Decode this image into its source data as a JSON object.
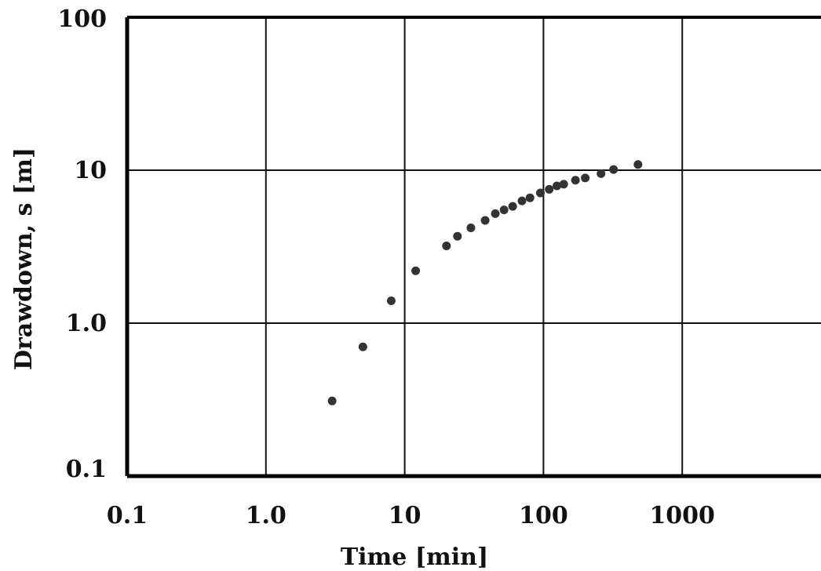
{
  "chart_data": {
    "type": "scatter",
    "title": "",
    "xlabel": "Time [min]",
    "ylabel": "Drawdown, s [m]",
    "x_scale": "log",
    "y_scale": "log",
    "xlim": [
      0.1,
      10000
    ],
    "ylim": [
      0.1,
      100
    ],
    "x_ticks": [
      {
        "value": 0.1,
        "label": "0.1"
      },
      {
        "value": 1,
        "label": "1.0"
      },
      {
        "value": 10,
        "label": "10"
      },
      {
        "value": 100,
        "label": "100"
      },
      {
        "value": 1000,
        "label": "1000"
      }
    ],
    "y_ticks": [
      {
        "value": 0.1,
        "label": "0.1"
      },
      {
        "value": 1,
        "label": "1.0"
      },
      {
        "value": 10,
        "label": "10"
      },
      {
        "value": 100,
        "label": "100"
      }
    ],
    "grid": true,
    "marker_color": "#333333",
    "series": [
      {
        "points": [
          {
            "x": 3,
            "y": 0.31
          },
          {
            "x": 5,
            "y": 0.7
          },
          {
            "x": 8,
            "y": 1.4
          },
          {
            "x": 12,
            "y": 2.2
          },
          {
            "x": 20,
            "y": 3.2
          },
          {
            "x": 24,
            "y": 3.7
          },
          {
            "x": 30,
            "y": 4.2
          },
          {
            "x": 38,
            "y": 4.7
          },
          {
            "x": 45,
            "y": 5.2
          },
          {
            "x": 52,
            "y": 5.5
          },
          {
            "x": 60,
            "y": 5.8
          },
          {
            "x": 70,
            "y": 6.3
          },
          {
            "x": 80,
            "y": 6.6
          },
          {
            "x": 95,
            "y": 7.1
          },
          {
            "x": 110,
            "y": 7.5
          },
          {
            "x": 125,
            "y": 7.9
          },
          {
            "x": 140,
            "y": 8.1
          },
          {
            "x": 170,
            "y": 8.6
          },
          {
            "x": 200,
            "y": 8.9
          },
          {
            "x": 260,
            "y": 9.5
          },
          {
            "x": 320,
            "y": 10.1
          },
          {
            "x": 480,
            "y": 10.9
          }
        ]
      }
    ]
  }
}
